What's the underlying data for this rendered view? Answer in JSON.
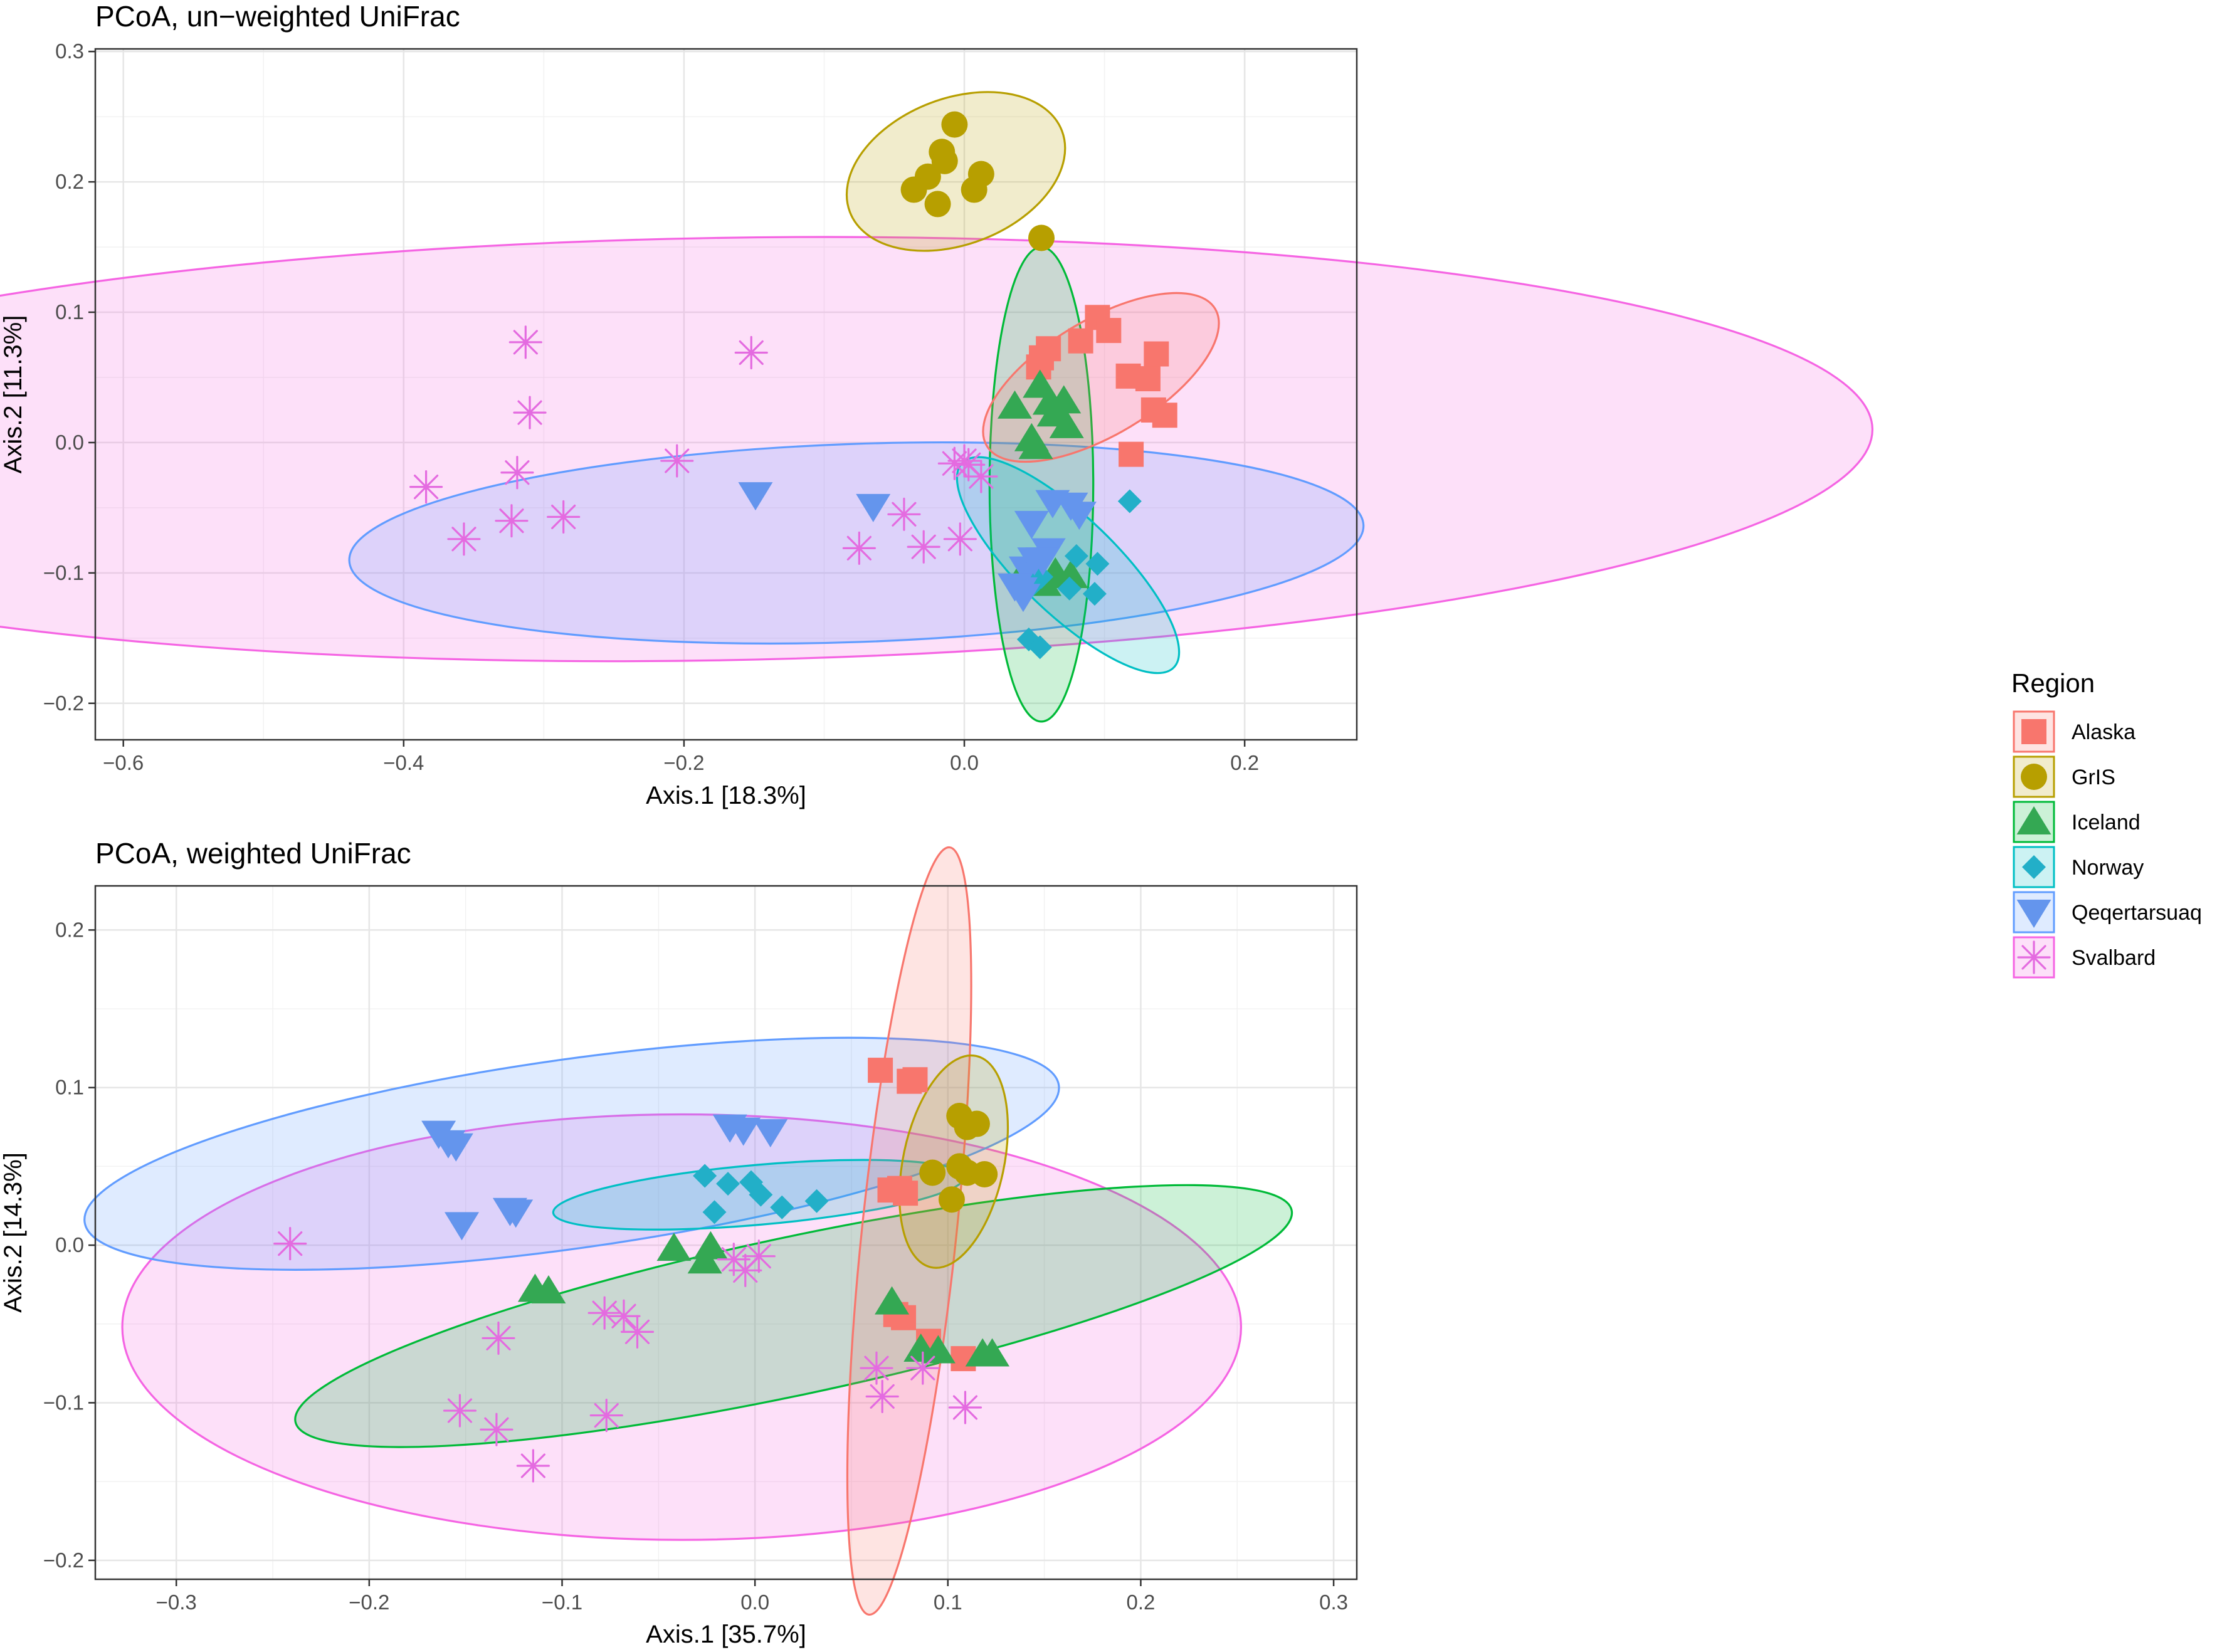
{
  "chart_data": [
    {
      "type": "scatter",
      "title": "PCoA, un−weighted UniFrac",
      "xlabel": "Axis.1   [18.3%]",
      "ylabel": "Axis.2   [11.3%]",
      "xlim": [
        -0.62,
        0.28
      ],
      "ylim": [
        -0.228,
        0.302
      ],
      "xticks": [
        -0.6,
        -0.4,
        -0.2,
        0.0,
        0.2
      ],
      "xtick_labels": [
        "−0.6",
        "−0.4",
        "−0.2",
        "0.0",
        "0.2"
      ],
      "yticks": [
        -0.2,
        -0.1,
        0.0,
        0.1,
        0.2,
        0.3
      ],
      "ytick_labels": [
        "−0.2",
        "−0.1",
        "0.0",
        "0.1",
        "0.2",
        "0.3"
      ],
      "grid": true,
      "series": [
        {
          "name": "Alaska",
          "points": [
            [
              0.055,
              0.065
            ],
            [
              0.06,
              0.072
            ],
            [
              0.053,
              0.058
            ],
            [
              0.083,
              0.078
            ],
            [
              0.095,
              0.096
            ],
            [
              0.103,
              0.086
            ],
            [
              0.117,
              0.051
            ],
            [
              0.131,
              0.049
            ],
            [
              0.137,
              0.068
            ],
            [
              0.135,
              0.025
            ],
            [
              0.143,
              0.021
            ],
            [
              0.119,
              -0.009
            ]
          ]
        },
        {
          "name": "GrIS",
          "points": [
            [
              -0.007,
              0.244
            ],
            [
              -0.016,
              0.223
            ],
            [
              -0.014,
              0.216
            ],
            [
              -0.026,
              0.204
            ],
            [
              -0.036,
              0.194
            ],
            [
              0.012,
              0.206
            ],
            [
              0.007,
              0.194
            ],
            [
              -0.019,
              0.183
            ],
            [
              0.055,
              0.157
            ]
          ]
        },
        {
          "name": "Iceland",
          "points": [
            [
              0.054,
              0.044
            ],
            [
              0.061,
              0.031
            ],
            [
              0.071,
              0.032
            ],
            [
              0.036,
              0.028
            ],
            [
              0.064,
              0.022
            ],
            [
              0.073,
              0.013
            ],
            [
              0.048,
              0.003
            ],
            [
              0.051,
              -0.003
            ],
            [
              0.042,
              -0.1
            ],
            [
              0.053,
              -0.102
            ],
            [
              0.057,
              -0.108
            ],
            [
              0.065,
              -0.1
            ],
            [
              0.076,
              -0.102
            ]
          ]
        },
        {
          "name": "Norway",
          "points": [
            [
              0.118,
              -0.045
            ],
            [
              0.08,
              -0.087
            ],
            [
              0.095,
              -0.093
            ],
            [
              0.093,
              -0.116
            ],
            [
              0.075,
              -0.112
            ],
            [
              0.05,
              -0.095
            ],
            [
              0.046,
              -0.151
            ],
            [
              0.054,
              -0.157
            ],
            [
              0.055,
              -0.103
            ],
            [
              0.048,
              -0.11
            ]
          ]
        },
        {
          "name": "Qeqertarsuaq",
          "points": [
            [
              -0.149,
              -0.04
            ],
            [
              -0.065,
              -0.049
            ],
            [
              0.063,
              -0.046
            ],
            [
              0.076,
              -0.048
            ],
            [
              0.082,
              -0.055
            ],
            [
              0.048,
              -0.062
            ],
            [
              0.044,
              -0.097
            ],
            [
              0.036,
              -0.11
            ],
            [
              0.06,
              -0.083
            ],
            [
              0.05,
              -0.09
            ],
            [
              0.04,
              -0.113
            ],
            [
              0.042,
              -0.118
            ],
            [
              0.056,
              -0.09
            ]
          ]
        },
        {
          "name": "Svalbard",
          "points": [
            [
              -0.313,
              0.077
            ],
            [
              -0.31,
              0.023
            ],
            [
              -0.152,
              0.069
            ],
            [
              -0.384,
              -0.034
            ],
            [
              -0.357,
              -0.074
            ],
            [
              -0.319,
              -0.023
            ],
            [
              -0.323,
              -0.06
            ],
            [
              -0.286,
              -0.057
            ],
            [
              -0.205,
              -0.014
            ],
            [
              -0.075,
              -0.081
            ],
            [
              -0.043,
              -0.055
            ],
            [
              -0.029,
              -0.08
            ],
            [
              -0.003,
              -0.074
            ],
            [
              -0.007,
              -0.016
            ],
            [
              0.003,
              -0.017
            ],
            [
              0.012,
              -0.026
            ],
            [
              0.0,
              -0.014
            ]
          ]
        }
      ],
      "ellipses": [
        {
          "series": "Alaska",
          "center": [
            0.0975,
            0.05
          ],
          "radii": [
            0.095,
            0.044
          ],
          "angle_deg": -31
        },
        {
          "series": "GrIS",
          "center": [
            -0.006,
            0.208
          ],
          "radii": [
            0.081,
            0.056
          ],
          "angle_deg": -21
        },
        {
          "series": "Iceland",
          "center": [
            0.055,
            -0.032
          ],
          "radii": [
            0.037,
            0.182
          ],
          "angle_deg": 0
        },
        {
          "series": "Norway",
          "center": [
            0.074,
            -0.094
          ],
          "radii": [
            0.105,
            0.037
          ],
          "angle_deg": 44
        },
        {
          "series": "Qeqertarsuaq",
          "center": [
            -0.077,
            -0.077
          ],
          "radii": [
            0.362,
            0.076
          ],
          "angle_deg": -2
        },
        {
          "series": "Svalbard",
          "center": [
            -0.176,
            -0.005
          ],
          "radii": [
            0.824,
            0.162
          ],
          "angle_deg": -1
        }
      ]
    },
    {
      "type": "scatter",
      "title": "PCoA, weighted UniFrac",
      "xlabel": "Axis.1   [35.7%]",
      "ylabel": "Axis.2   [14.3%]",
      "xlim": [
        -0.342,
        0.312
      ],
      "ylim": [
        -0.212,
        0.228
      ],
      "xticks": [
        -0.3,
        -0.2,
        -0.1,
        0.0,
        0.1,
        0.2,
        0.3
      ],
      "xtick_labels": [
        "−0.3",
        "−0.2",
        "−0.1",
        "0.0",
        "0.1",
        "0.2",
        "0.3"
      ],
      "yticks": [
        -0.2,
        -0.1,
        0.0,
        0.1,
        0.2
      ],
      "ytick_labels": [
        "−0.2",
        "−0.1",
        "0.0",
        "0.1",
        "0.2"
      ],
      "grid": true,
      "series": [
        {
          "name": "Alaska",
          "points": [
            [
              0.065,
              0.111
            ],
            [
              0.08,
              0.104
            ],
            [
              0.083,
              0.105
            ],
            [
              0.07,
              0.035
            ],
            [
              0.075,
              0.036
            ],
            [
              0.078,
              0.033
            ],
            [
              0.073,
              -0.044
            ],
            [
              0.077,
              -0.046
            ],
            [
              0.09,
              -0.061
            ],
            [
              0.108,
              -0.072
            ]
          ]
        },
        {
          "name": "GrIS",
          "points": [
            [
              0.106,
              0.082
            ],
            [
              0.115,
              0.077
            ],
            [
              0.11,
              0.075
            ],
            [
              0.092,
              0.046
            ],
            [
              0.106,
              0.05
            ],
            [
              0.11,
              0.046
            ],
            [
              0.119,
              0.045
            ],
            [
              0.102,
              0.029
            ]
          ]
        },
        {
          "name": "Iceland",
          "points": [
            [
              -0.042,
              -0.002
            ],
            [
              -0.023,
              -0.001
            ],
            [
              -0.026,
              -0.01
            ],
            [
              -0.114,
              -0.028
            ],
            [
              -0.107,
              -0.029
            ],
            [
              0.071,
              -0.036
            ],
            [
              0.086,
              -0.066
            ],
            [
              0.095,
              -0.067
            ],
            [
              0.118,
              -0.069
            ],
            [
              0.123,
              -0.069
            ]
          ]
        },
        {
          "name": "Norway",
          "points": [
            [
              -0.026,
              0.044
            ],
            [
              -0.014,
              0.039
            ],
            [
              -0.002,
              0.04
            ],
            [
              0.003,
              0.032
            ],
            [
              -0.021,
              0.021
            ],
            [
              0.014,
              0.024
            ],
            [
              0.032,
              0.028
            ]
          ]
        },
        {
          "name": "Qeqertarsuaq",
          "points": [
            [
              -0.164,
              0.071
            ],
            [
              -0.159,
              0.065
            ],
            [
              -0.155,
              0.063
            ],
            [
              -0.127,
              0.022
            ],
            [
              -0.124,
              0.021
            ],
            [
              -0.152,
              0.013
            ],
            [
              -0.013,
              0.075
            ],
            [
              -0.006,
              0.073
            ],
            [
              0.008,
              0.072
            ]
          ]
        },
        {
          "name": "Svalbard",
          "points": [
            [
              -0.241,
              0.001
            ],
            [
              -0.133,
              -0.059
            ],
            [
              -0.153,
              -0.105
            ],
            [
              -0.134,
              -0.117
            ],
            [
              -0.115,
              -0.14
            ],
            [
              -0.077,
              -0.108
            ],
            [
              -0.078,
              -0.043
            ],
            [
              -0.068,
              -0.045
            ],
            [
              -0.061,
              -0.055
            ],
            [
              -0.011,
              -0.009
            ],
            [
              -0.005,
              -0.016
            ],
            [
              0.002,
              -0.007
            ],
            [
              0.063,
              -0.078
            ],
            [
              0.066,
              -0.096
            ],
            [
              0.087,
              -0.078
            ],
            [
              0.109,
              -0.103
            ]
          ]
        }
      ],
      "ellipses": [
        {
          "series": "Alaska",
          "center": [
            0.08,
            0.009
          ],
          "radii": [
            0.2,
            0.03
          ],
          "angle_deg": -84
        },
        {
          "series": "GrIS",
          "center": [
            0.103,
            0.053
          ],
          "radii": [
            0.056,
            0.032
          ],
          "angle_deg": -78
        },
        {
          "series": "Iceland",
          "center": [
            0.02,
            -0.045
          ],
          "radii": [
            0.264,
            0.05
          ],
          "angle_deg": -12
        },
        {
          "series": "Norway",
          "center": [
            0.002,
            0.032
          ],
          "radii": [
            0.107,
            0.019
          ],
          "angle_deg": -5
        },
        {
          "series": "Qeqertarsuaq",
          "center": [
            -0.095,
            0.058
          ],
          "radii": [
            0.255,
            0.06
          ],
          "angle_deg": -8
        },
        {
          "series": "Svalbard",
          "center": [
            -0.038,
            -0.052
          ],
          "radii": [
            0.29,
            0.135
          ],
          "angle_deg": 0
        }
      ]
    }
  ],
  "legend": {
    "title": "Region",
    "items": [
      {
        "label": "Alaska",
        "shape": "square",
        "color": "#F8766D"
      },
      {
        "label": "GrIS",
        "shape": "circle",
        "color": "#B79F00"
      },
      {
        "label": "Iceland",
        "shape": "triangle-up",
        "color": "#00BA38"
      },
      {
        "label": "Norway",
        "shape": "diamond",
        "color": "#00BFC4"
      },
      {
        "label": "Qeqertarsuaq",
        "shape": "triangle-down",
        "color": "#619CFF"
      },
      {
        "label": "Svalbard",
        "shape": "asterisk",
        "color": "#F564E3"
      }
    ]
  },
  "marker_colors": {
    "Alaska": "#F8766D",
    "GrIS": "#B79F00",
    "Iceland": "#34A853",
    "Norway": "#22AFC8",
    "Qeqertarsuaq": "#6495ED",
    "Svalbard": "#E46BE0"
  }
}
